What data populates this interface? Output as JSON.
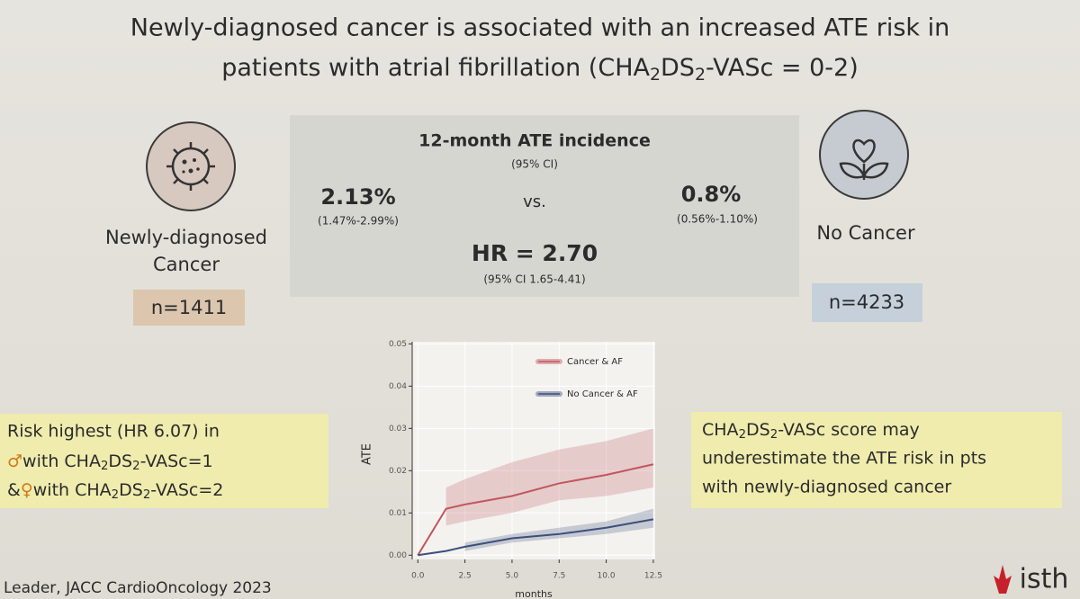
{
  "title": [
    "Newly-diagnosed cancer is associated with an increased ATE risk in",
    "patients with atrial fibrillation (CHA",
    "2",
    "DS",
    "2",
    "-VASc = 0-2)"
  ],
  "cancer_group": {
    "label": [
      "Newly-diagnosed",
      "Cancer"
    ],
    "n": "n=1411"
  },
  "no_cancer_group": {
    "label": "No Cancer",
    "n": "n=4233"
  },
  "incidence_panel": {
    "heading": "12-month ATE incidence",
    "heading_ci": "(95% CI)",
    "cancer_value": "2.13%",
    "cancer_ci": "(1.47%-2.99%)",
    "versus": "vs.",
    "no_cancer_value": "0.8%",
    "no_cancer_ci": "(0.56%-1.10%)",
    "hr": "HR = 2.70",
    "hr_ci": "(95% CI 1.65-4.41)"
  },
  "left_note": [
    [
      "Risk highest (HR 6.07) in"
    ],
    [
      "♂",
      "with CHA",
      "2",
      "DS",
      "2",
      "-VASc=1"
    ],
    [
      "&",
      "♀",
      "with CHA",
      "2",
      "DS",
      "2",
      "-VASc=2"
    ]
  ],
  "right_note": [
    [
      "CHA",
      "2",
      "DS",
      "2",
      "-VASc score may"
    ],
    [
      "underestimate the ATE risk in pts"
    ],
    [
      "with newly-diagnosed cancer"
    ]
  ],
  "citation": "Leader, JACC CardioOncology 2023",
  "logo": "isth",
  "chart_data": {
    "type": "line",
    "x_label": "months",
    "y_label": "ATE",
    "x": [
      0,
      1.5,
      2.5,
      5,
      7.5,
      10,
      12.5
    ],
    "series": [
      {
        "name": "Cancer & AF",
        "color": "#c0575e",
        "values": [
          0,
          0.011,
          0.012,
          0.014,
          0.017,
          0.019,
          0.0215
        ],
        "lower": [
          null,
          0.007,
          0.008,
          0.01,
          0.013,
          0.014,
          0.016
        ],
        "upper": [
          null,
          0.016,
          0.018,
          0.022,
          0.025,
          0.027,
          0.03
        ]
      },
      {
        "name": "No Cancer & AF",
        "color": "#3d4f7a",
        "values": [
          0,
          0.001,
          0.002,
          0.004,
          0.005,
          0.0065,
          0.0085
        ],
        "lower": [
          null,
          null,
          0.001,
          0.003,
          0.004,
          0.005,
          0.0065
        ],
        "upper": [
          null,
          null,
          0.003,
          0.005,
          0.0065,
          0.008,
          0.011
        ]
      }
    ],
    "xlim": [
      -0.3,
      12.6
    ],
    "ylim": [
      -0.001,
      0.0505
    ],
    "xticks": [
      {
        "value": 0,
        "label": "0.0"
      },
      2.5,
      {
        "value": 5,
        "label": "5.0"
      },
      7.5,
      {
        "value": 10,
        "label": "10.0"
      },
      12.5
    ],
    "yticks": [
      {
        "value": 0,
        "label": "0.00"
      },
      {
        "value": 0.01,
        "label": "0.01"
      },
      {
        "value": 0.02,
        "label": "0.02"
      },
      {
        "value": 0.03,
        "label": "0.03"
      },
      {
        "value": 0.04,
        "label": "0.04"
      },
      {
        "value": 0.05,
        "label": "0.05"
      }
    ],
    "grid": true
  }
}
